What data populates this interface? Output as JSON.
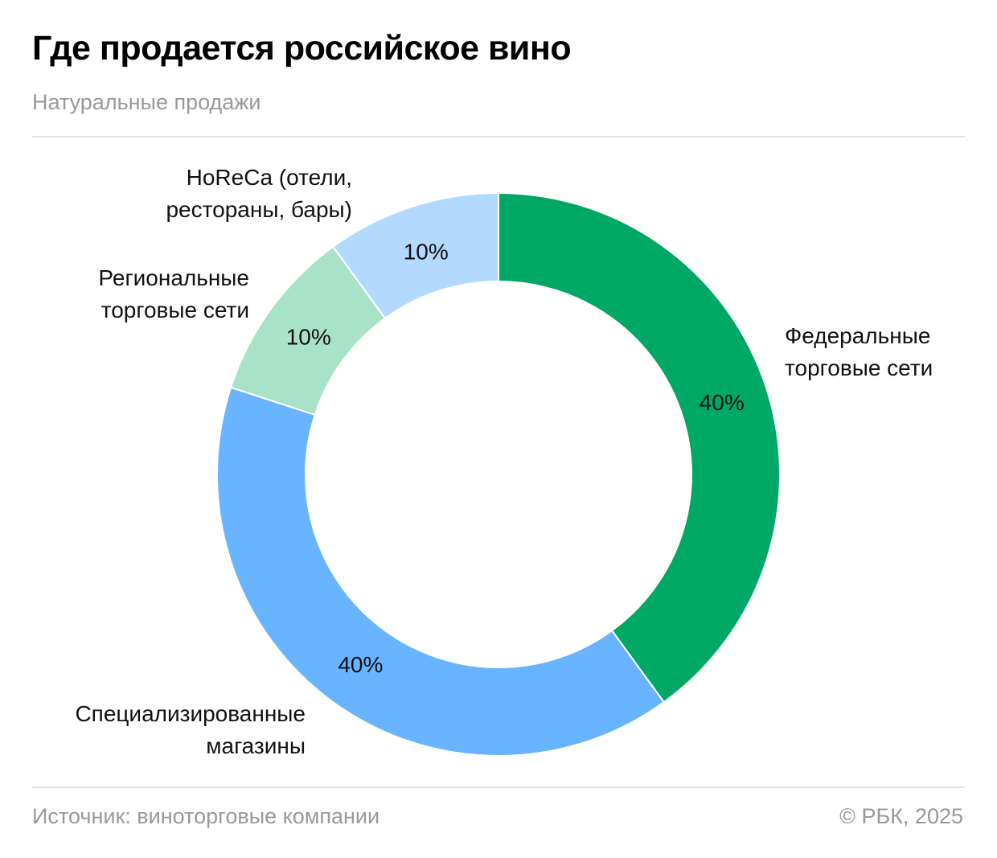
{
  "header": {
    "title": "Где продается российское вино",
    "subtitle": "Натуральные продажи"
  },
  "chart_data": {
    "type": "pie",
    "subtype": "donut",
    "title": "Где продается российское вино",
    "subtitle": "Натуральные продажи",
    "unit": "%",
    "start": "top, clockwise",
    "slices": [
      {
        "label": "Федеральные торговые сети",
        "label_lines": [
          "Федеральные",
          "торговые сети"
        ],
        "value": 40,
        "value_label": "40%",
        "color": "#00a865"
      },
      {
        "label": "Специализированные магазины",
        "label_lines": [
          "Специализированные",
          "магазины"
        ],
        "value": 40,
        "value_label": "40%",
        "color": "#69b4ff"
      },
      {
        "label": "Региональные торговые сети",
        "label_lines": [
          "Региональные",
          "торговые сети"
        ],
        "value": 10,
        "value_label": "10%",
        "color": "#a8e2c8"
      },
      {
        "label": "HoReCa (отели, рестораны, бары)",
        "label_lines": [
          "HoReCa (отели,",
          "рестораны, бары)"
        ],
        "value": 10,
        "value_label": "10%",
        "color": "#b3d9ff"
      }
    ]
  },
  "footer": {
    "source": "Источник: виноторговые компании",
    "copyright": "© РБК, 2025"
  }
}
